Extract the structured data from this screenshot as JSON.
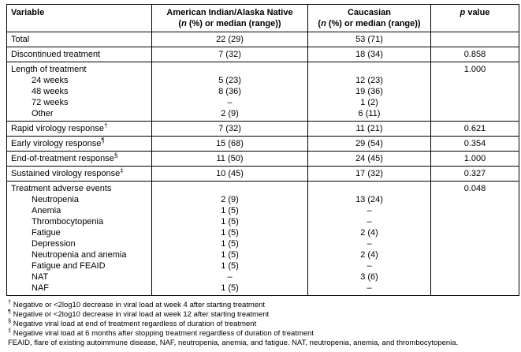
{
  "header": {
    "variable": "Variable",
    "aian_title": "American Indian/Alaska Native",
    "cauc_title": "Caucasian",
    "sub_pre": "(",
    "sub_italic": "n",
    "sub_post": " (%) or median (range))",
    "p_italic": "p",
    "p_rest": " value"
  },
  "table": {
    "rows": [
      {
        "label": "Total",
        "aian": "22 (29)",
        "cauc": "53 (71)",
        "p": ""
      },
      {
        "label": "Discontinued treatment",
        "aian": "7 (32)",
        "cauc": "18 (34)",
        "p": "0.858"
      },
      {
        "label": "Length of treatment",
        "p": "1.000",
        "sub": [
          {
            "label": "24 weeks",
            "aian": "5 (23)",
            "cauc": "12 (23)"
          },
          {
            "label": "48 weeks",
            "aian": "8 (36)",
            "cauc": "19 (36)"
          },
          {
            "label": "72 weeks",
            "aian": "–",
            "cauc": "1 (2)"
          },
          {
            "label": "Other",
            "aian": "2 (9)",
            "cauc": "6 (11)"
          }
        ]
      },
      {
        "label": "Rapid virology response",
        "sup": "†",
        "aian": "7 (32)",
        "cauc": "11 (21)",
        "p": "0.621"
      },
      {
        "label": "Early virology response",
        "sup": "¶",
        "aian": "15 (68)",
        "cauc": "29 (54)",
        "p": "0.354"
      },
      {
        "label": "End-of-treatment response",
        "sup": "§",
        "aian": "11 (50)",
        "cauc": "24 (45)",
        "p": "1.000"
      },
      {
        "label": "Sustained virology response",
        "sup": "‡",
        "aian": "10 (45)",
        "cauc": "17 (32)",
        "p": "0.327"
      },
      {
        "label": "Treatment adverse events",
        "p": "0.048",
        "sub": [
          {
            "label": "Neutropenia",
            "aian": "2 (9)",
            "cauc": "13 (24)"
          },
          {
            "label": "Anemia",
            "aian": "1 (5)",
            "cauc": "–"
          },
          {
            "label": "Thrombocytopenia",
            "aian": "1 (5)",
            "cauc": "–"
          },
          {
            "label": "Fatigue",
            "aian": "1 (5)",
            "cauc": "2 (4)"
          },
          {
            "label": "Depression",
            "aian": "1 (5)",
            "cauc": "–"
          },
          {
            "label": "Neutropenia and anemia",
            "aian": "1 (5)",
            "cauc": "2 (4)"
          },
          {
            "label": "Fatigue and FEAID",
            "aian": "1 (5)",
            "cauc": "–"
          },
          {
            "label": "NAT",
            "aian": "–",
            "cauc": "3 (6)"
          },
          {
            "label": "NAF",
            "aian": "1 (5)",
            "cauc": "–"
          }
        ]
      }
    ]
  },
  "footnotes": [
    {
      "sup": "†",
      "text": "Negative or <2log10 decrease in viral load at week 4 after starting treatment"
    },
    {
      "sup": "¶",
      "text": "Negative or <2log10 decrease in viral load at week 12 after starting treatment"
    },
    {
      "sup": "§",
      "text": "Negative viral load at end of treatment regardless of duration of treatment"
    },
    {
      "sup": "‡",
      "text": "Negative viral load at 6 months after stopping treatment regardless of duration of treatment"
    },
    {
      "sup": "",
      "text": "FEAID, flare of existing autoimmune disease, NAF, neutropenia, anemia, and fatigue. NAT, neutropenia, anemia, and thrombocytopenia."
    }
  ],
  "colors": {
    "border": "#000000",
    "text": "#000000",
    "background": "#ffffff"
  }
}
